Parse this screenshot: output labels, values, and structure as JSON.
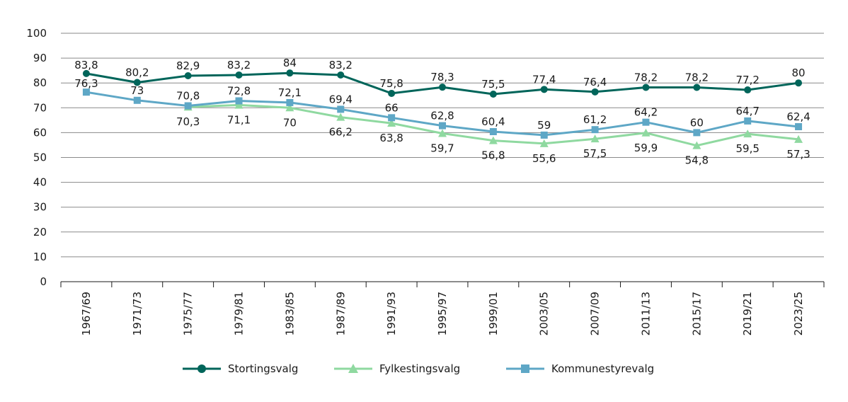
{
  "chart_data": {
    "type": "line",
    "categories": [
      "1967/69",
      "1971/73",
      "1975/77",
      "1979/81",
      "1983/85",
      "1987/89",
      "1991/93",
      "1995/97",
      "1999/01",
      "2003/05",
      "2007/09",
      "2011/13",
      "2015/17",
      "2019/21",
      "2023/25"
    ],
    "y_ticks": [
      "0",
      "10",
      "20",
      "30",
      "40",
      "50",
      "60",
      "70",
      "80",
      "90",
      "100"
    ],
    "ylim": [
      0,
      100
    ],
    "grid": "horizontal",
    "legend_position": "bottom",
    "series": [
      {
        "name": "Stortingsvalg",
        "color": "#00655a",
        "marker": "circle",
        "values": [
          83.8,
          80.2,
          82.9,
          83.2,
          84,
          83.2,
          75.8,
          78.3,
          75.5,
          77.4,
          76.4,
          78.2,
          78.2,
          77.2,
          80
        ],
        "labels": [
          "83,8",
          "80,2",
          "82,9",
          "83,2",
          "84",
          "83,2",
          "75,8",
          "78,3",
          "75,5",
          "77,4",
          "76,4",
          "78,2",
          "78,2",
          "77,2",
          "80"
        ]
      },
      {
        "name": "Fylkestingsvalg",
        "color": "#8fd9a0",
        "marker": "triangle",
        "values": [
          null,
          null,
          70.3,
          71.1,
          70,
          66.2,
          63.8,
          59.7,
          56.8,
          55.6,
          57.5,
          59.9,
          54.8,
          59.5,
          57.3
        ],
        "labels": [
          null,
          null,
          "70,3",
          "71,1",
          "70",
          "66,2",
          "63,8",
          "59,7",
          "56,8",
          "55,6",
          "57,5",
          "59,9",
          "54,8",
          "59,5",
          "57,3"
        ]
      },
      {
        "name": "Kommunestyrevalg",
        "color": "#5ea7c6",
        "marker": "square",
        "values": [
          76.3,
          73,
          70.8,
          72.8,
          72.1,
          69.4,
          66,
          62.8,
          60.4,
          59,
          61.2,
          64.2,
          60,
          64.7,
          62.4
        ],
        "labels": [
          "76,3",
          "73",
          "70,8",
          "72,8",
          "72,1",
          "69,4",
          "66",
          "62,8",
          "60,4",
          "59",
          "61,2",
          "64,2",
          "60",
          "64,7",
          "62,4"
        ]
      }
    ]
  }
}
